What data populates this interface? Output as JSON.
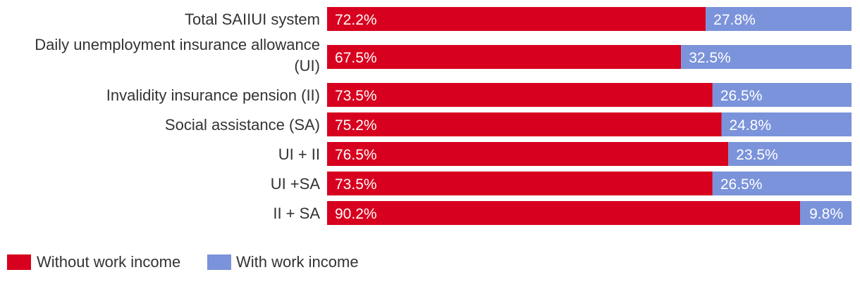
{
  "chart_data": {
    "type": "bar",
    "orientation": "horizontal",
    "stacked": true,
    "value_format": "percent",
    "categories": [
      [
        "Total SAIIUI system"
      ],
      [
        "Daily unemployment insurance allowance",
        "(UI)"
      ],
      [
        "Invalidity insurance pension (II)"
      ],
      [
        "Social assistance (SA)"
      ],
      [
        "UI + II"
      ],
      [
        "UI +SA"
      ],
      [
        "II + SA"
      ]
    ],
    "series": [
      {
        "name": "Without work income",
        "color": "#d7001e",
        "values": [
          72.2,
          67.5,
          73.5,
          75.2,
          76.5,
          73.5,
          90.2
        ],
        "labels": [
          "72.2%",
          "67.5%",
          "73.5%",
          "75.2%",
          "76.5%",
          "73.5%",
          "90.2%"
        ]
      },
      {
        "name": "With work income",
        "color": "#7b93da",
        "values": [
          27.8,
          32.5,
          26.5,
          24.8,
          23.5,
          26.5,
          9.8
        ],
        "labels": [
          "27.8%",
          "32.5%",
          "26.5%",
          "24.8%",
          "23.5%",
          "26.5%",
          "9.8%"
        ]
      }
    ],
    "xlim": [
      0,
      100
    ],
    "grid": false,
    "legend_position": "bottom-left"
  }
}
